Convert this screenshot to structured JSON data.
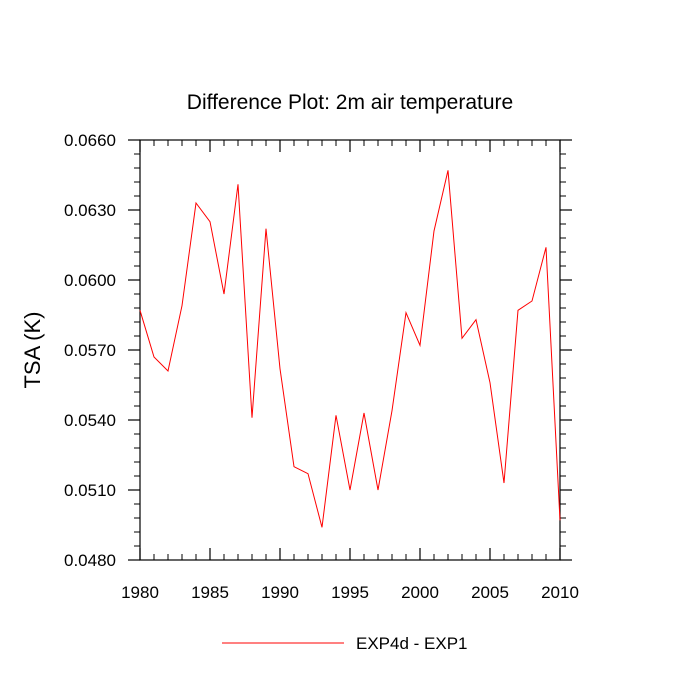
{
  "chart_data": {
    "type": "line",
    "title": "Difference Plot: 2m air temperature",
    "xlabel": "",
    "ylabel": "TSA  (K)",
    "xlim": [
      1980,
      2010
    ],
    "ylim": [
      0.048,
      0.066
    ],
    "x_ticks": [
      1980,
      1985,
      1990,
      1995,
      2000,
      2005,
      2010
    ],
    "y_ticks": [
      "0.0480",
      "0.0510",
      "0.0540",
      "0.0570",
      "0.0600",
      "0.0630",
      "0.0660"
    ],
    "grid": false,
    "legend_position": "bottom",
    "series": [
      {
        "name": "EXP4d - EXP1",
        "color": "#ff0000",
        "x": [
          1980,
          1981,
          1982,
          1983,
          1984,
          1985,
          1986,
          1987,
          1988,
          1989,
          1990,
          1991,
          1992,
          1993,
          1994,
          1995,
          1996,
          1997,
          1998,
          1999,
          2000,
          2001,
          2002,
          2003,
          2004,
          2005,
          2006,
          2007,
          2008,
          2009,
          2010
        ],
        "values": [
          0.0587,
          0.0567,
          0.0561,
          0.0589,
          0.0633,
          0.0625,
          0.0594,
          0.0641,
          0.0541,
          0.0622,
          0.0562,
          0.052,
          0.0517,
          0.0494,
          0.0542,
          0.051,
          0.0543,
          0.051,
          0.0544,
          0.0586,
          0.0572,
          0.0621,
          0.0647,
          0.0575,
          0.0583,
          0.0556,
          0.0513,
          0.0587,
          0.0591,
          0.0614,
          0.0497
        ]
      }
    ]
  }
}
